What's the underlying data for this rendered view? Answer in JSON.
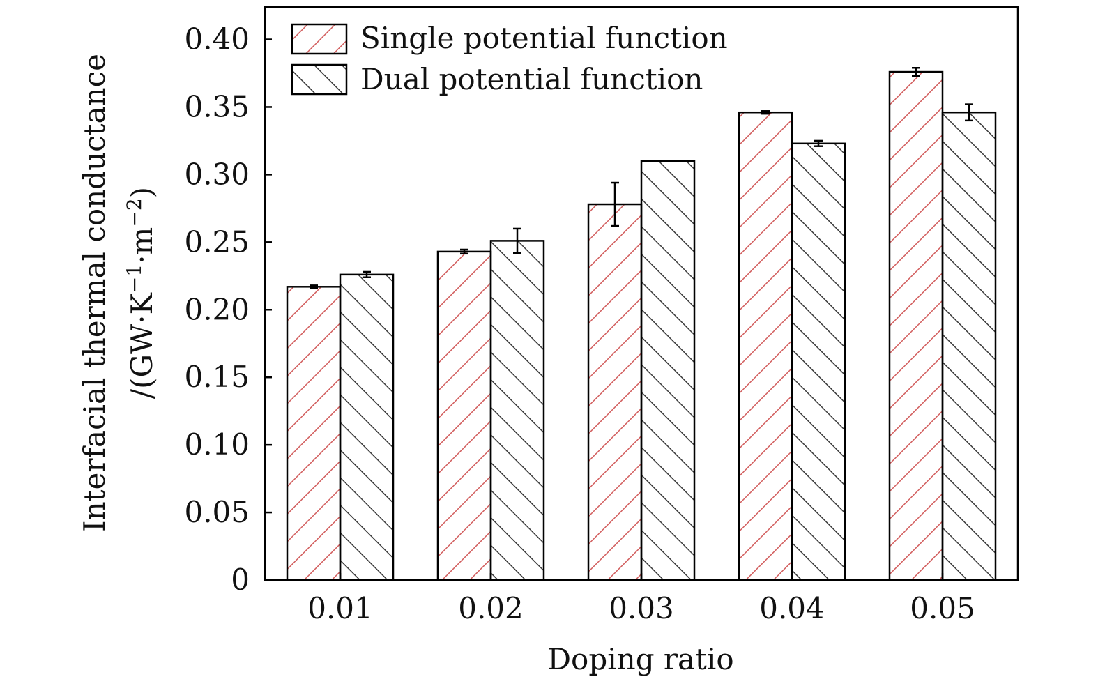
{
  "chart_data": {
    "type": "bar",
    "title": "",
    "xlabel": "Doping ratio",
    "ylabel": {
      "line1": "Interfacial thermal conductance",
      "line2_prefix": "/(GW·K",
      "line2_exp1": "−1",
      "line2_mid": "·m",
      "line2_exp2": "−2",
      "line2_suffix": ")"
    },
    "categories": [
      "0.01",
      "0.02",
      "0.03",
      "0.04",
      "0.05"
    ],
    "ylim": [
      0,
      0.424
    ],
    "yticks": [
      0,
      0.05,
      0.1,
      0.15,
      0.2,
      0.25,
      0.3,
      0.35,
      0.4
    ],
    "ytick_labels": [
      "0",
      "0.05",
      "0.10",
      "0.15",
      "0.20",
      "0.25",
      "0.30",
      "0.35",
      "0.40"
    ],
    "legend_position": "top-left",
    "grid": false,
    "series": [
      {
        "name": "Single potential function",
        "color": "#d25e5e",
        "hatch": "forward-diagonal",
        "values": [
          0.217,
          0.243,
          0.278,
          0.346,
          0.376
        ],
        "errors": [
          0.001,
          0.0015,
          0.016,
          0.001,
          0.003
        ]
      },
      {
        "name": "Dual potential function",
        "color": "#3a3a3a",
        "hatch": "backward-diagonal",
        "values": [
          0.226,
          0.251,
          0.31,
          0.323,
          0.346
        ],
        "errors": [
          0.002,
          0.009,
          0.0,
          0.002,
          0.006
        ]
      }
    ]
  }
}
